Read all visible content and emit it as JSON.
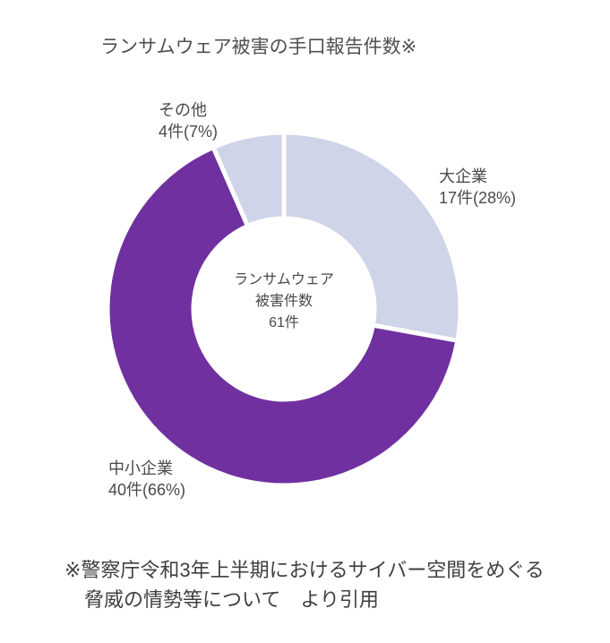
{
  "title": "ランサムウェア被害の手口報告件数※",
  "chart_data": {
    "type": "pie",
    "subtype": "donut",
    "title": "ランサムウェア被害の手口報告件数※",
    "unit": "件",
    "total": 61,
    "center_label": [
      "ランサムウェア",
      "被害件数",
      "61件"
    ],
    "slices": [
      {
        "id": "large-company",
        "name": "大企業",
        "value": 17,
        "percent": 28,
        "label": "17件(28%)",
        "color": "#D0D4E8"
      },
      {
        "id": "sme",
        "name": "中小企業",
        "value": 40,
        "percent": 66,
        "label": "40件(66%)",
        "color": "#7030A0"
      },
      {
        "id": "other",
        "name": "その他",
        "value": 4,
        "percent": 7,
        "label": "4件(7%)",
        "color": "#D0D4E8"
      }
    ],
    "slice_gap_color": "#FFFFFF",
    "start_angle_deg": 0,
    "direction": "clockwise",
    "legend_position": "none"
  },
  "source_note": {
    "line1": "※警察庁令和3年上半期におけるサイバー空間をめぐる",
    "line2": "脅威の情勢等について　より引用"
  }
}
